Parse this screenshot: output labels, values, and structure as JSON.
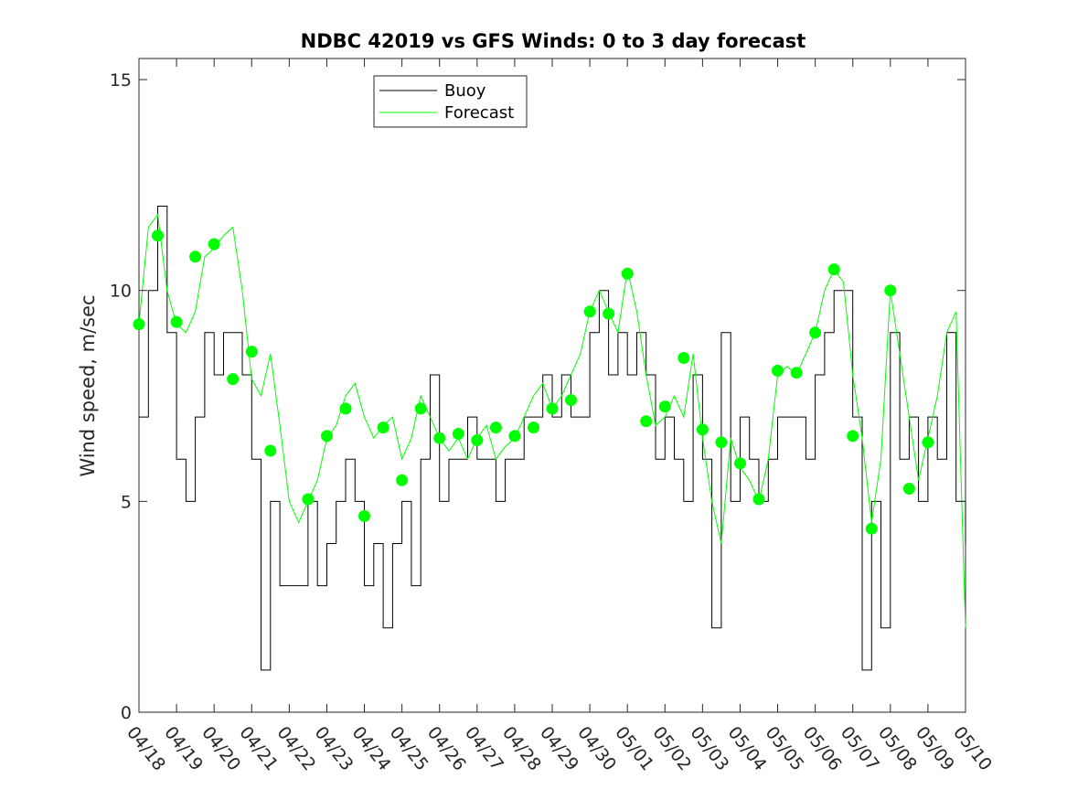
{
  "chart_data": {
    "type": "line",
    "title": "NDBC 42019 vs GFS Winds: 0 to 3 day forecast",
    "xlabel": "",
    "ylabel": "Wind speed, m/sec",
    "xlim": [
      "04/18",
      "05/10"
    ],
    "ylim": [
      0,
      15.5
    ],
    "x_ticks": [
      "04/18",
      "04/19",
      "04/20",
      "04/21",
      "04/22",
      "04/23",
      "04/24",
      "04/25",
      "04/26",
      "04/27",
      "04/28",
      "04/29",
      "04/30",
      "05/01",
      "05/02",
      "05/03",
      "05/04",
      "05/05",
      "05/06",
      "05/07",
      "05/08",
      "05/09",
      "05/10"
    ],
    "y_ticks": [
      0,
      5,
      10,
      15
    ],
    "grid": false,
    "legend": {
      "placement": "top-left",
      "entries": [
        "Buoy",
        "Forecast"
      ]
    },
    "colors": {
      "buoy": "#000000",
      "forecast": "#00ff00",
      "markers": "#00ff00"
    },
    "series": [
      {
        "name": "Buoy",
        "x": [
          "04/18",
          "04/18 06h",
          "04/18 12h",
          "04/18 18h",
          "04/19",
          "04/19 06h",
          "04/19 12h",
          "04/19 18h",
          "04/20",
          "04/20 06h",
          "04/20 12h",
          "04/20 18h",
          "04/21",
          "04/21 06h",
          "04/21 12h",
          "04/21 18h",
          "04/22",
          "04/22 06h",
          "04/22 12h",
          "04/22 18h",
          "04/23",
          "04/23 06h",
          "04/23 12h",
          "04/23 18h",
          "04/24",
          "04/24 06h",
          "04/24 12h",
          "04/24 18h",
          "04/25",
          "04/25 06h",
          "04/25 12h",
          "04/25 18h",
          "04/26",
          "04/26 06h",
          "04/26 12h",
          "04/26 18h",
          "04/27",
          "04/27 06h",
          "04/27 12h",
          "04/27 18h",
          "04/28",
          "04/28 06h",
          "04/28 12h",
          "04/28 18h",
          "04/29",
          "04/29 06h",
          "04/29 12h",
          "04/29 18h",
          "04/30",
          "04/30 06h",
          "04/30 12h",
          "04/30 18h",
          "05/01",
          "05/01 06h",
          "05/01 12h",
          "05/01 18h",
          "05/02",
          "05/02 06h",
          "05/02 12h",
          "05/02 18h",
          "05/03",
          "05/03 06h",
          "05/03 12h",
          "05/03 18h",
          "05/04",
          "05/04 06h",
          "05/04 12h",
          "05/04 18h",
          "05/05",
          "05/05 06h",
          "05/05 12h",
          "05/05 18h",
          "05/06",
          "05/06 06h",
          "05/06 12h",
          "05/06 18h",
          "05/07",
          "05/07 06h",
          "05/07 12h",
          "05/07 18h",
          "05/08",
          "05/08 06h",
          "05/08 12h",
          "05/08 18h",
          "05/09",
          "05/09 06h",
          "05/09 12h",
          "05/09 18h",
          "05/10"
        ],
        "values": [
          7,
          10,
          12,
          9,
          6,
          5,
          7,
          9,
          8,
          9,
          9,
          8,
          6,
          1,
          5,
          3,
          3,
          3,
          5,
          3,
          4,
          5,
          6,
          5,
          3,
          4,
          2,
          4,
          5,
          3,
          6,
          8,
          5,
          6,
          6,
          7,
          6,
          6,
          5,
          6,
          6,
          7,
          7,
          8,
          7,
          8,
          7,
          7,
          9,
          10,
          8,
          9,
          8,
          9,
          8,
          6,
          7,
          6,
          5,
          8,
          6,
          2,
          9,
          5,
          7,
          6,
          5,
          6,
          7,
          7,
          7,
          6,
          8,
          9,
          10,
          10,
          7,
          1,
          5,
          2,
          9,
          6,
          7,
          5,
          7,
          6,
          9,
          5,
          4
        ]
      },
      {
        "name": "Forecast",
        "x": [
          "04/18",
          "04/18 06h",
          "04/18 12h",
          "04/18 18h",
          "04/19",
          "04/19 06h",
          "04/19 12h",
          "04/19 18h",
          "04/20",
          "04/20 06h",
          "04/20 12h",
          "04/20 18h",
          "04/21",
          "04/21 06h",
          "04/21 12h",
          "04/21 18h",
          "04/22",
          "04/22 06h",
          "04/22 12h",
          "04/22 18h",
          "04/23",
          "04/23 06h",
          "04/23 12h",
          "04/23 18h",
          "04/24",
          "04/24 06h",
          "04/24 12h",
          "04/24 18h",
          "04/25",
          "04/25 06h",
          "04/25 12h",
          "04/25 18h",
          "04/26",
          "04/26 06h",
          "04/26 12h",
          "04/26 18h",
          "04/27",
          "04/27 06h",
          "04/27 12h",
          "04/27 18h",
          "04/28",
          "04/28 06h",
          "04/28 12h",
          "04/28 18h",
          "04/29",
          "04/29 06h",
          "04/29 12h",
          "04/29 18h",
          "04/30",
          "04/30 06h",
          "04/30 12h",
          "04/30 18h",
          "05/01",
          "05/01 06h",
          "05/01 12h",
          "05/01 18h",
          "05/02",
          "05/02 06h",
          "05/02 12h",
          "05/02 18h",
          "05/03",
          "05/03 06h",
          "05/03 12h",
          "05/03 18h",
          "05/04",
          "05/04 06h",
          "05/04 12h",
          "05/04 18h",
          "05/05",
          "05/05 06h",
          "05/05 12h",
          "05/05 18h",
          "05/06",
          "05/06 06h",
          "05/06 12h",
          "05/06 18h",
          "05/07",
          "05/07 06h",
          "05/07 12h",
          "05/07 18h",
          "05/08",
          "05/08 06h",
          "05/08 12h",
          "05/08 18h",
          "05/09",
          "05/09 06h",
          "05/09 12h",
          "05/09 18h",
          "05/10"
        ],
        "values": [
          9.2,
          11.5,
          11.8,
          10.0,
          9.2,
          9.0,
          9.5,
          10.8,
          11.0,
          11.3,
          11.5,
          10.0,
          7.9,
          7.5,
          8.5,
          6.8,
          5.0,
          4.5,
          5.0,
          5.5,
          6.5,
          6.8,
          7.5,
          7.8,
          7.0,
          6.5,
          6.8,
          7.0,
          6.0,
          6.5,
          7.5,
          7.0,
          6.5,
          6.2,
          6.5,
          6.0,
          6.5,
          6.8,
          6.0,
          6.3,
          6.5,
          7.0,
          7.5,
          7.8,
          7.2,
          7.5,
          8.0,
          8.5,
          9.5,
          10.0,
          9.5,
          9.0,
          10.5,
          9.5,
          8.0,
          6.8,
          7.0,
          7.5,
          7.0,
          8.5,
          6.5,
          5.0,
          4.0,
          6.5,
          5.8,
          5.5,
          5.0,
          6.0,
          8.0,
          8.2,
          8.0,
          8.5,
          9.0,
          10.0,
          10.5,
          10.2,
          8.0,
          6.5,
          4.5,
          6.0,
          10.0,
          8.5,
          7.0,
          5.5,
          6.5,
          7.5,
          9.0,
          9.5,
          2.0
        ]
      },
      {
        "name": "",
        "x": [
          "04/18",
          "04/18 12h",
          "04/19",
          "04/19 12h",
          "04/20",
          "04/20 12h",
          "04/21",
          "04/21 12h",
          "04/22",
          "04/22 12h",
          "04/23",
          "04/23 12h",
          "04/24",
          "04/24 12h",
          "04/25",
          "04/25 12h",
          "04/26",
          "04/26 12h",
          "04/27",
          "04/27 12h",
          "04/28",
          "04/28 12h",
          "04/29",
          "04/29 12h",
          "04/30",
          "04/30 12h",
          "05/01",
          "05/01 12h",
          "05/02",
          "05/02 12h",
          "05/03",
          "05/03 12h",
          "05/04",
          "05/04 12h",
          "05/05",
          "05/05 12h",
          "05/06",
          "05/06 12h",
          "05/07",
          "05/07 12h",
          "05/08",
          "05/08 12h",
          "05/09"
        ],
        "values": [
          9.2,
          11.3,
          9.25,
          10.8,
          11.1,
          7.9,
          8.55,
          6.2,
          null,
          5.05,
          6.55,
          7.2,
          4.65,
          6.75,
          5.5,
          7.2,
          6.5,
          6.6,
          6.45,
          6.75,
          6.55,
          6.75,
          7.2,
          7.4,
          9.5,
          9.45,
          10.4,
          6.9,
          7.25,
          8.4,
          6.7,
          6.4,
          5.9,
          5.05,
          8.1,
          8.05,
          9.0,
          10.5,
          6.55,
          4.35,
          10.0,
          5.3,
          6.4
        ]
      }
    ]
  }
}
